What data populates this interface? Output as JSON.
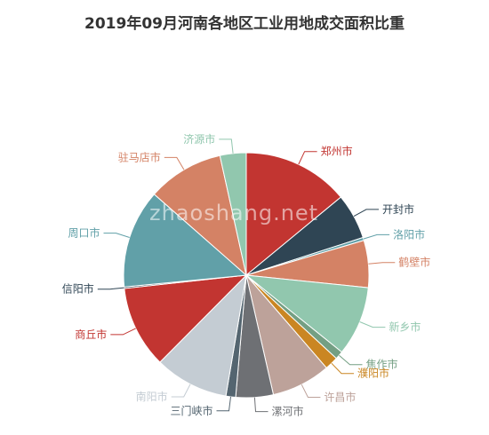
{
  "chart_data": {
    "type": "pie",
    "title": "2019年09月河南各地区工业用地成交面积比重",
    "start_angle_deg": 90,
    "series": [
      {
        "name": "郑州市",
        "value": 14.2,
        "color": "#c23531"
      },
      {
        "name": "开封市",
        "value": 6.1,
        "color": "#2f4554"
      },
      {
        "name": "洛阳市",
        "value": 0.4,
        "color": "#61a0a8"
      },
      {
        "name": "鹤壁市",
        "value": 6.3,
        "color": "#d48265"
      },
      {
        "name": "新乡市",
        "value": 9.3,
        "color": "#91c7ae"
      },
      {
        "name": "焦作市",
        "value": 1.1,
        "color": "#749f83"
      },
      {
        "name": "濮阳市",
        "value": 1.8,
        "color": "#ca8622"
      },
      {
        "name": "许昌市",
        "value": 7.9,
        "color": "#bda29a"
      },
      {
        "name": "漯河市",
        "value": 5.0,
        "color": "#6e7074"
      },
      {
        "name": "三门峡市",
        "value": 1.3,
        "color": "#546570"
      },
      {
        "name": "南阳市",
        "value": 9.9,
        "color": "#c4ccd3"
      },
      {
        "name": "商丘市",
        "value": 11.0,
        "color": "#c23531"
      },
      {
        "name": "信阳市",
        "value": 0.2,
        "color": "#2f4554"
      },
      {
        "name": "周口市",
        "value": 13.2,
        "color": "#61a0a8"
      },
      {
        "name": "驻马店市",
        "value": 10.2,
        "color": "#d48265"
      },
      {
        "name": "济源市",
        "value": 3.5,
        "color": "#91c7ae"
      }
    ]
  },
  "watermark": "zhaoshang.net"
}
